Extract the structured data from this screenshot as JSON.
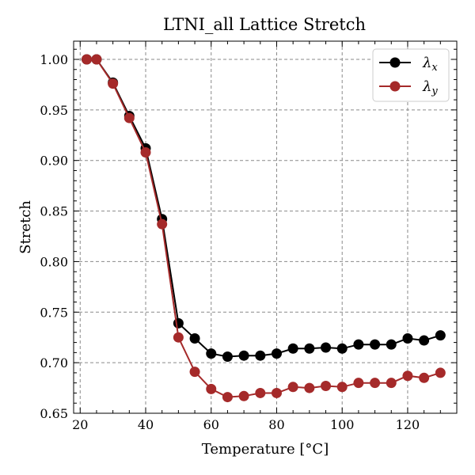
{
  "chart_data": {
    "type": "line",
    "title": "LTNI_all Lattice Stretch",
    "xlabel": "Temperature [°C]",
    "ylabel": "Stretch",
    "xlim": [
      18,
      135
    ],
    "ylim": [
      0.65,
      1.018
    ],
    "xticks": [
      20,
      40,
      60,
      80,
      100,
      120
    ],
    "xtick_labels": [
      "20",
      "40",
      "60",
      "80",
      "100",
      "120"
    ],
    "yticks": [
      0.65,
      0.7,
      0.75,
      0.8,
      0.85,
      0.9,
      0.95,
      1.0
    ],
    "ytick_labels": [
      "0.65",
      "0.70",
      "0.75",
      "0.80",
      "0.85",
      "0.90",
      "0.95",
      "1.00"
    ],
    "grid": true,
    "legend_position": "top-right",
    "x": [
      22,
      25,
      30,
      35,
      40,
      45,
      50,
      55,
      60,
      65,
      70,
      75,
      80,
      85,
      90,
      95,
      100,
      105,
      110,
      115,
      120,
      125,
      130
    ],
    "series": [
      {
        "name": "λx",
        "legend_main": "λ",
        "legend_sub": "x",
        "color": "#000000",
        "values": [
          1.0,
          1.0,
          0.977,
          0.944,
          0.912,
          0.842,
          0.739,
          0.724,
          0.709,
          0.706,
          0.707,
          0.707,
          0.709,
          0.714,
          0.714,
          0.715,
          0.714,
          0.718,
          0.718,
          0.718,
          0.724,
          0.722,
          0.727
        ]
      },
      {
        "name": "λy",
        "legend_main": "λ",
        "legend_sub": "y",
        "color": "#a52a2a",
        "values": [
          1.0,
          1.0,
          0.976,
          0.942,
          0.908,
          0.837,
          0.725,
          0.691,
          0.674,
          0.666,
          0.667,
          0.67,
          0.67,
          0.676,
          0.675,
          0.677,
          0.676,
          0.68,
          0.68,
          0.68,
          0.687,
          0.685,
          0.69
        ]
      }
    ]
  }
}
